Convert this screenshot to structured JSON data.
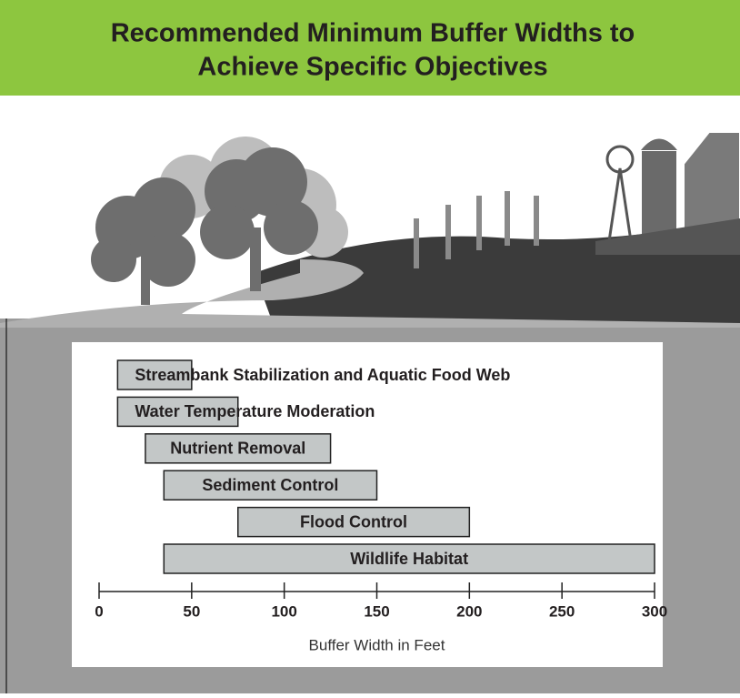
{
  "chart_data": {
    "type": "range-bar",
    "title": [
      "Recommended Minimum Buffer Widths to",
      "Achieve Specific Objectives"
    ],
    "categories": [
      "Streambank Stabilization and Aquatic Food Web",
      "Water Temperature Moderation",
      "Nutrient Removal",
      "Sediment Control",
      "Flood Control",
      "Wildlife Habitat"
    ],
    "low": [
      10,
      10,
      25,
      35,
      75,
      35
    ],
    "high": [
      50,
      75,
      125,
      150,
      200,
      300
    ],
    "color": "#c3c7c7",
    "xlim": [
      0,
      300
    ],
    "xticks": [
      0,
      50,
      100,
      150,
      200,
      250,
      300
    ],
    "xlabel": "Buffer Width in Feet"
  }
}
